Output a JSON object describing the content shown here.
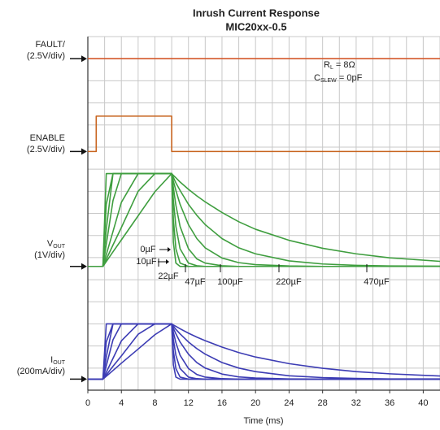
{
  "chart_data": {
    "type": "line",
    "title": "Inrush Current Response",
    "subtitle": "MIC20xx-0.5",
    "xlabel": "Time (ms)",
    "xlim": [
      0,
      42
    ],
    "ylim": [
      0,
      16
    ],
    "xticks": [
      0,
      4,
      8,
      12,
      16,
      20,
      24,
      28,
      32,
      36,
      40
    ],
    "xgrid": [
      0,
      2,
      4,
      6,
      8,
      10,
      12,
      14,
      16,
      18,
      20,
      22,
      24,
      26,
      28,
      30,
      32,
      34,
      36,
      38,
      40,
      42
    ],
    "ygrid": [
      0,
      1,
      2,
      3,
      4,
      5,
      6,
      7,
      8,
      9,
      10,
      11,
      12,
      13,
      14,
      15,
      16
    ],
    "grid": true,
    "annotations": [
      {
        "main": "R",
        "sub": "L",
        "rest": " = 8Ω"
      },
      {
        "main": "C",
        "sub": "SLEW",
        "rest": " = 0pF"
      }
    ],
    "channels": [
      {
        "main": "FAULT/",
        "scale": "(2.5V/div)",
        "level": 15.0
      },
      {
        "main": "ENABLE",
        "scale": "(2.5V/div)",
        "level": 10.8
      },
      {
        "main": "V",
        "sub": "OUT",
        "scale": "(1V/div)",
        "level": 5.6
      },
      {
        "main": "I",
        "sub": "OUT",
        "scale": "(200mA/div)",
        "level": 0.5
      }
    ],
    "series": [
      {
        "color": "#d4582a",
        "x": [
          0,
          42
        ],
        "values": [
          15.0,
          15.0
        ]
      },
      {
        "color": "#c8641e",
        "x": [
          0,
          1,
          1,
          10,
          10,
          42
        ],
        "values": [
          10.8,
          10.8,
          12.4,
          12.4,
          10.8,
          10.8
        ]
      },
      {
        "name": "0µF",
        "color": "#3f9e3f",
        "x": [
          0,
          1.8,
          2.2,
          3,
          4,
          6,
          8,
          10,
          10.2,
          10.5,
          11,
          12,
          13,
          14,
          16,
          18,
          20,
          24,
          28,
          32,
          36,
          42
        ],
        "values": [
          5.6,
          5.6,
          9.8,
          9.8,
          9.8,
          9.8,
          9.8,
          9.8,
          6.7,
          5.75,
          5.6,
          5.6,
          5.6,
          5.6,
          5.6,
          5.6,
          5.6,
          5.6,
          5.6,
          5.6,
          5.6,
          5.6
        ]
      },
      {
        "name": "10µF",
        "color": "#3f9e3f",
        "x": [
          0,
          1.8,
          2.2,
          3,
          4,
          6,
          8,
          10,
          10.2,
          10.5,
          11,
          12,
          13,
          14,
          16,
          18,
          20,
          24,
          28,
          32,
          36,
          42
        ],
        "values": [
          5.6,
          5.6,
          8.41,
          9.8,
          9.8,
          9.8,
          9.8,
          9.8,
          7.74,
          6.4,
          5.75,
          5.6,
          5.6,
          5.6,
          5.6,
          5.6,
          5.6,
          5.6,
          5.6,
          5.6,
          5.6,
          5.6
        ]
      },
      {
        "name": "22µF",
        "color": "#3f9e3f",
        "x": [
          0,
          1.8,
          2.2,
          3,
          4,
          6,
          8,
          10,
          10.2,
          10.5,
          11,
          12,
          13,
          14,
          16,
          18,
          20,
          24,
          28,
          32,
          36,
          42
        ],
        "values": [
          5.6,
          5.6,
          7.28,
          9.8,
          9.8,
          9.8,
          9.8,
          9.8,
          8.62,
          7.41,
          6.4,
          5.75,
          5.63,
          5.6,
          5.6,
          5.6,
          5.6,
          5.6,
          5.6,
          5.6,
          5.6,
          5.6
        ]
      },
      {
        "name": "47µF",
        "color": "#3f9e3f",
        "x": [
          0,
          1.8,
          2.2,
          3,
          4,
          6,
          8,
          10,
          10.2,
          10.5,
          11,
          12,
          13,
          14,
          16,
          18,
          20,
          24,
          28,
          32,
          36,
          42
        ],
        "values": [
          5.6,
          5.6,
          6.6,
          8.58,
          9.8,
          9.8,
          9.8,
          9.8,
          9.17,
          8.37,
          7.41,
          6.4,
          5.94,
          5.75,
          5.63,
          5.6,
          5.6,
          5.6,
          5.6,
          5.6,
          5.6,
          5.6
        ]
      },
      {
        "name": "100µF",
        "color": "#3f9e3f",
        "x": [
          0,
          1.8,
          2.2,
          3,
          4,
          6,
          8,
          10,
          10.2,
          10.5,
          11,
          12,
          13,
          14,
          16,
          18,
          20,
          24,
          28,
          32,
          36,
          42
        ],
        "values": [
          5.6,
          5.6,
          6.13,
          7.18,
          8.5,
          9.8,
          9.8,
          9.8,
          9.46,
          9.04,
          8.41,
          7.49,
          6.86,
          6.44,
          5.98,
          5.77,
          5.68,
          5.62,
          5.6,
          5.6,
          5.6,
          5.6
        ]
      },
      {
        "name": "220µF",
        "color": "#3f9e3f",
        "x": [
          0,
          1.8,
          2.2,
          3,
          4,
          6,
          8,
          10,
          10.2,
          10.5,
          11,
          12,
          13,
          14,
          16,
          18,
          20,
          24,
          28,
          32,
          36,
          42
        ],
        "values": [
          5.6,
          5.6,
          5.92,
          6.57,
          7.36,
          9.0,
          9.8,
          9.8,
          9.63,
          9.38,
          9.04,
          8.41,
          7.91,
          7.49,
          6.86,
          6.44,
          6.17,
          5.85,
          5.71,
          5.65,
          5.62,
          5.61
        ]
      },
      {
        "name": "470µF",
        "color": "#3f9e3f",
        "x": [
          0,
          1.8,
          2.2,
          3,
          4,
          6,
          8,
          10,
          10.2,
          10.5,
          11,
          12,
          13,
          14,
          16,
          18,
          20,
          24,
          28,
          32,
          36,
          42
        ],
        "values": [
          5.6,
          5.6,
          5.82,
          6.26,
          6.8,
          7.89,
          8.98,
          9.8,
          9.72,
          9.61,
          9.42,
          9.09,
          8.79,
          8.52,
          8.04,
          7.62,
          7.28,
          6.78,
          6.42,
          6.17,
          5.99,
          5.83
        ]
      },
      {
        "color": "#3c3cb4",
        "x": [
          0,
          1.8,
          2.2,
          3,
          4,
          6,
          8,
          10,
          10.2,
          10.5,
          11,
          12,
          13,
          14,
          16,
          18,
          20,
          24,
          28,
          32,
          36,
          42
        ],
        "values": [
          0.5,
          0.5,
          3,
          3,
          3,
          3,
          3,
          3,
          1.15,
          0.59,
          0.5,
          0.5,
          0.5,
          0.5,
          0.5,
          0.5,
          0.5,
          0.5,
          0.5,
          0.5,
          0.5,
          0.5
        ]
      },
      {
        "color": "#3c3cb4",
        "x": [
          0,
          1.8,
          2.2,
          3,
          4,
          6,
          8,
          10,
          10.2,
          10.5,
          11,
          12,
          13,
          14,
          16,
          18,
          20,
          24,
          28,
          32,
          36,
          42
        ],
        "values": [
          0.5,
          0.5,
          2.18,
          3,
          3,
          3,
          3,
          3,
          1.78,
          0.98,
          0.59,
          0.5,
          0.5,
          0.5,
          0.5,
          0.5,
          0.5,
          0.5,
          0.5,
          0.5,
          0.5,
          0.5
        ]
      },
      {
        "color": "#3c3cb4",
        "x": [
          0,
          1.8,
          2.2,
          3,
          4,
          6,
          8,
          10,
          10.2,
          10.5,
          11,
          12,
          13,
          14,
          16,
          18,
          20,
          24,
          28,
          32,
          36,
          42
        ],
        "values": [
          0.5,
          0.5,
          1.5,
          3,
          3,
          3,
          3,
          3,
          2.3,
          1.58,
          0.98,
          0.59,
          0.52,
          0.5,
          0.5,
          0.5,
          0.5,
          0.5,
          0.5,
          0.5,
          0.5,
          0.5
        ]
      },
      {
        "color": "#3c3cb4",
        "x": [
          0,
          1.8,
          2.2,
          3,
          4,
          6,
          8,
          10,
          10.2,
          10.5,
          11,
          12,
          13,
          14,
          16,
          18,
          20,
          24,
          28,
          32,
          36,
          42
        ],
        "values": [
          0.5,
          0.5,
          1.1,
          2.28,
          3,
          3,
          3,
          3,
          2.63,
          2.15,
          1.58,
          0.98,
          0.71,
          0.59,
          0.52,
          0.5,
          0.5,
          0.5,
          0.5,
          0.5,
          0.5,
          0.5
        ]
      },
      {
        "color": "#3c3cb4",
        "x": [
          0,
          1.8,
          2.2,
          3,
          4,
          6,
          8,
          10,
          10.2,
          10.5,
          11,
          12,
          13,
          14,
          16,
          18,
          20,
          24,
          28,
          32,
          36,
          42
        ],
        "values": [
          0.5,
          0.5,
          0.81,
          1.44,
          2.23,
          3,
          3,
          3,
          2.8,
          2.55,
          2.18,
          1.63,
          1.25,
          1.0,
          0.73,
          0.6,
          0.55,
          0.51,
          0.5,
          0.5,
          0.5,
          0.5
        ]
      },
      {
        "color": "#3c3cb4",
        "x": [
          0,
          1.8,
          2.2,
          3,
          4,
          6,
          8,
          10,
          10.2,
          10.5,
          11,
          12,
          13,
          14,
          16,
          18,
          20,
          24,
          28,
          32,
          36,
          42
        ],
        "values": [
          0.5,
          0.5,
          0.69,
          1.08,
          1.55,
          2.53,
          3,
          3,
          2.9,
          2.75,
          2.55,
          2.18,
          1.88,
          1.63,
          1.25,
          1.0,
          0.84,
          0.65,
          0.57,
          0.53,
          0.51,
          0.51
        ]
      },
      {
        "color": "#3c3cb4",
        "x": [
          0,
          1.8,
          2.2,
          3,
          4,
          6,
          8,
          10,
          10.2,
          10.5,
          11,
          12,
          13,
          14,
          16,
          18,
          20,
          24,
          28,
          32,
          36,
          42
        ],
        "values": [
          0.5,
          0.5,
          0.63,
          0.89,
          1.22,
          1.86,
          2.51,
          3,
          2.95,
          2.89,
          2.78,
          2.58,
          2.4,
          2.24,
          1.95,
          1.7,
          1.5,
          1.2,
          0.99,
          0.84,
          0.74,
          0.64
        ]
      }
    ]
  }
}
